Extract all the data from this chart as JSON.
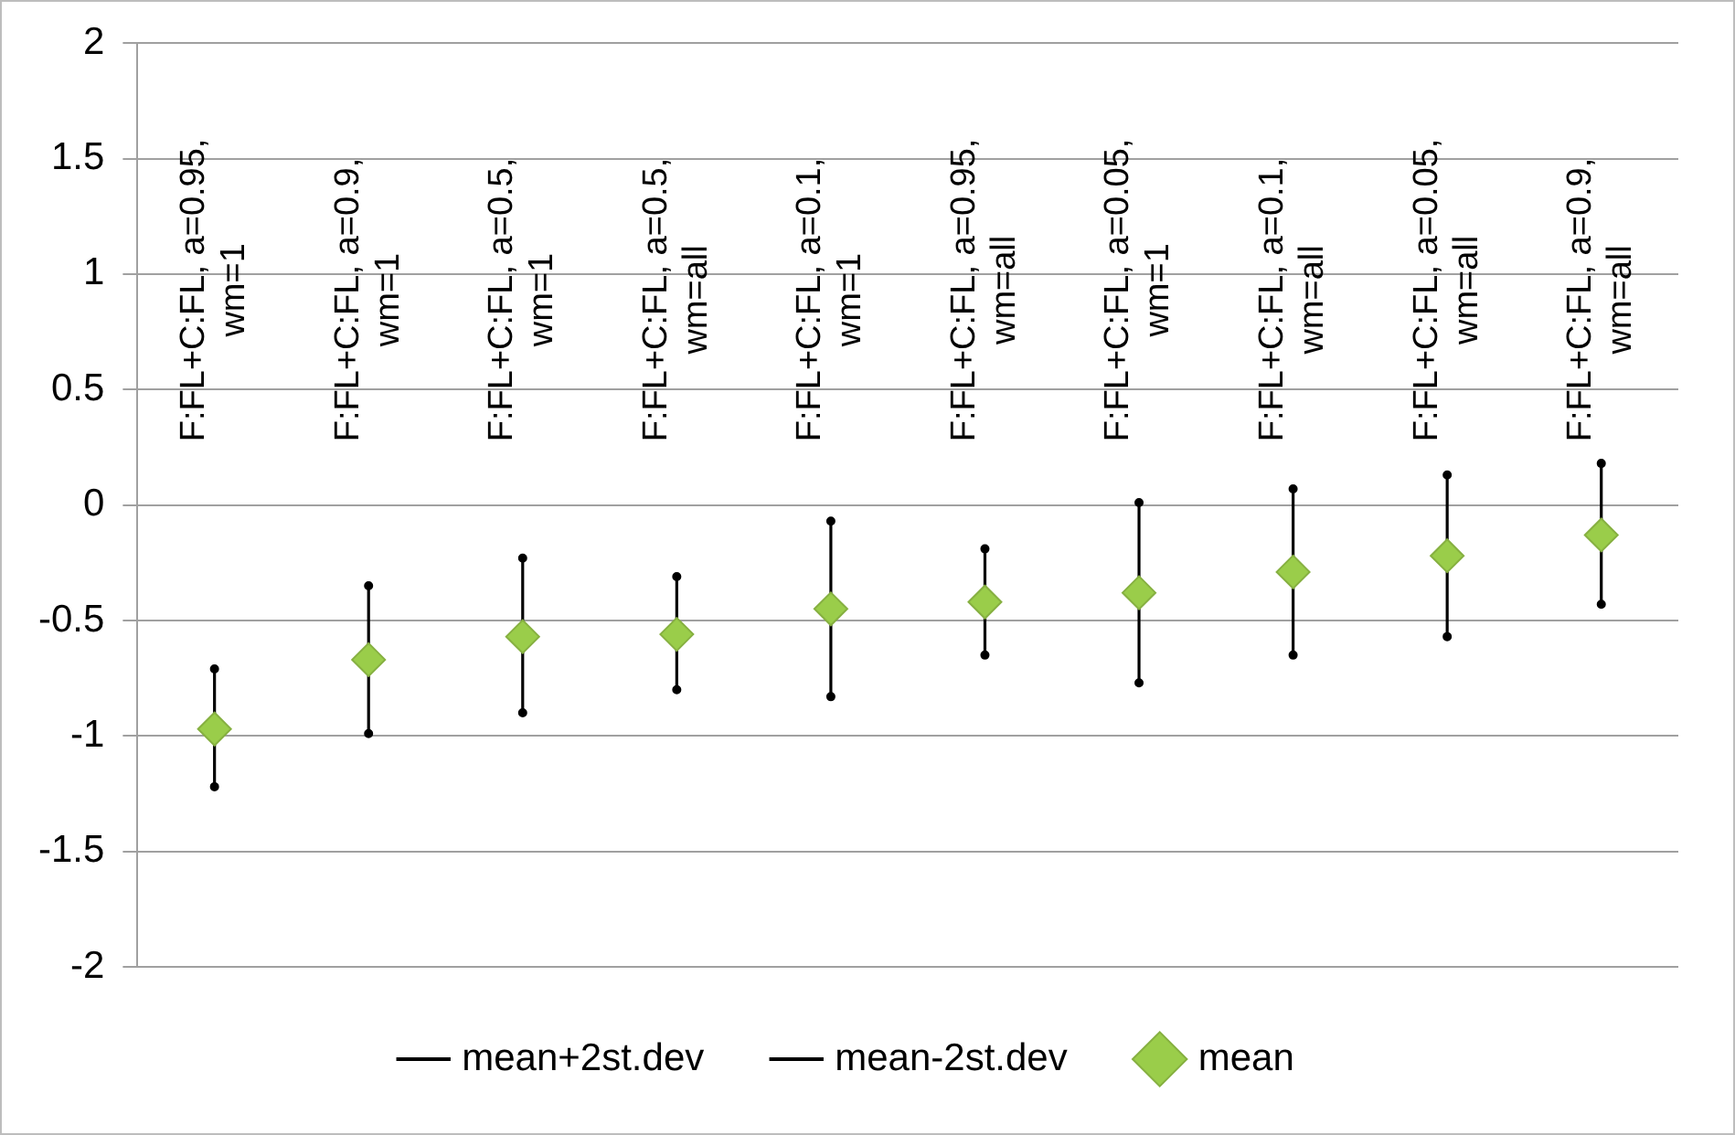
{
  "chart_data": {
    "type": "scatter",
    "categories": [
      "F:FL+C:FL, a=0.95, wm=1",
      "F:FL+C:FL, a=0.9, wm=1",
      "F:FL+C:FL, a=0.5, wm=1",
      "F:FL+C:FL, a=0.5, wm=all",
      "F:FL+C:FL, a=0.1, wm=1",
      "F:FL+C:FL, a=0.95, wm=all",
      "F:FL+C:FL, a=0.05, wm=1",
      "F:FL+C:FL, a=0.1, wm=all",
      "F:FL+C:FL, a=0.05, wm=all",
      "F:FL+C:FL, a=0.9, wm=all"
    ],
    "series": [
      {
        "name": "mean+2st.dev",
        "color": "#000000",
        "marker": "circle",
        "values": [
          -0.71,
          -0.35,
          -0.23,
          -0.31,
          -0.07,
          -0.19,
          0.01,
          0.07,
          0.13,
          0.18
        ]
      },
      {
        "name": "mean-2st.dev",
        "color": "#000000",
        "marker": "circle",
        "values": [
          -1.22,
          -0.99,
          -0.9,
          -0.8,
          -0.83,
          -0.65,
          -0.77,
          -0.65,
          -0.57,
          -0.43
        ]
      },
      {
        "name": "mean",
        "color": "#9acd4a",
        "marker": "diamond",
        "values": [
          -0.97,
          -0.67,
          -0.57,
          -0.56,
          -0.45,
          -0.42,
          -0.38,
          -0.29,
          -0.22,
          -0.13
        ]
      }
    ],
    "ylim": [
      -2,
      2
    ],
    "yticks": [
      -2,
      -1.5,
      -1,
      -0.5,
      0,
      0.5,
      1,
      1.5,
      2
    ],
    "grid": "y",
    "legend": "bottom"
  }
}
